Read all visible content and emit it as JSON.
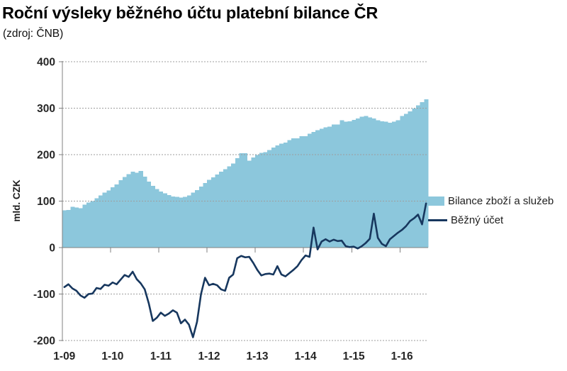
{
  "header": {
    "title": "Roční výsleky běžného účtu platební bilance ČR",
    "subtitle": "(zdroj: ČNB)"
  },
  "chart_data": {
    "type": "combo",
    "title": "Roční výsleky běžného účtu platební bilance ČR",
    "source": "(zdroj: ČNB)",
    "x_start": "2009-01",
    "x_frequency": "monthly",
    "x_tick_labels": [
      "1-09",
      "1-10",
      "1-11",
      "1-12",
      "1-13",
      "1-14",
      "1-15",
      "1-16"
    ],
    "ylabel": "mld. CZK",
    "ylim": [
      -200,
      400
    ],
    "y_ticks": [
      400,
      300,
      200,
      100,
      0,
      -100,
      -200
    ],
    "grid": true,
    "legend_position": "right",
    "colors": {
      "area": "#8CC7DC",
      "line": "#17375E",
      "gridline": "#9E9E9E",
      "axis": "#808080",
      "tick_text": "#262626"
    },
    "series": [
      {
        "name": "Bilance zboží a služeb",
        "type": "area",
        "color": "#8CC7DC",
        "values": [
          80,
          81,
          88,
          86,
          85,
          92,
          97,
          100,
          106,
          112,
          118,
          123,
          130,
          136,
          145,
          152,
          158,
          163,
          161,
          165,
          153,
          142,
          133,
          126,
          121,
          117,
          113,
          110,
          109,
          108,
          109,
          112,
          118,
          124,
          131,
          139,
          146,
          151,
          157,
          163,
          169,
          175,
          181,
          192,
          203,
          203,
          187,
          194,
          199,
          204,
          205,
          210,
          215,
          220,
          224,
          226,
          231,
          235,
          235,
          240,
          240,
          245,
          249,
          253,
          256,
          259,
          260,
          265,
          265,
          274,
          271,
          272,
          275,
          278,
          282,
          283,
          280,
          278,
          274,
          272,
          271,
          269,
          271,
          274,
          283,
          288,
          293,
          299,
          306,
          313,
          319
        ]
      },
      {
        "name": "Běžný účet",
        "type": "line",
        "color": "#17375E",
        "values": [
          -85,
          -79,
          -88,
          -93,
          -103,
          -108,
          -100,
          -99,
          -87,
          -89,
          -80,
          -82,
          -75,
          -79,
          -69,
          -59,
          -63,
          -52,
          -68,
          -77,
          -90,
          -120,
          -158,
          -151,
          -140,
          -147,
          -142,
          -135,
          -140,
          -163,
          -155,
          -166,
          -193,
          -160,
          -100,
          -65,
          -81,
          -78,
          -81,
          -90,
          -93,
          -65,
          -58,
          -23,
          -18,
          -21,
          -20,
          -33,
          -48,
          -60,
          -57,
          -56,
          -58,
          -40,
          -58,
          -62,
          -55,
          -48,
          -40,
          -27,
          -17,
          -20,
          43,
          -4,
          13,
          18,
          13,
          17,
          14,
          15,
          3,
          1,
          2,
          -2,
          3,
          10,
          19,
          73,
          21,
          8,
          3,
          18,
          25,
          32,
          38,
          46,
          57,
          63,
          71,
          50,
          95
        ]
      }
    ]
  }
}
